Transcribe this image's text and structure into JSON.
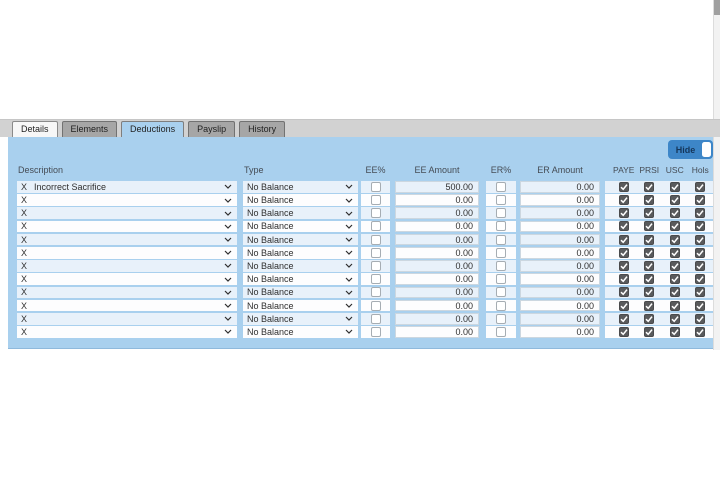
{
  "tabs": [
    {
      "label": "Details",
      "active": false
    },
    {
      "label": "Elements",
      "active": false
    },
    {
      "label": "Deductions",
      "active": true
    },
    {
      "label": "Payslip",
      "active": false
    },
    {
      "label": "History",
      "active": false
    }
  ],
  "panel": {
    "hide_toggle_label": "Hide"
  },
  "table": {
    "remove_marker": "X",
    "headers": {
      "description": "Description",
      "type": "Type",
      "ee_pct": "EE%",
      "ee_amount": "EE Amount",
      "er_pct": "ER%",
      "er_amount": "ER Amount",
      "flags": [
        "PAYE",
        "PRSI",
        "USC",
        "Hols"
      ]
    },
    "rows": [
      {
        "description": "Incorrect Sacrifice",
        "type": "No Balance",
        "ee_pct": false,
        "ee_amount": "500.00",
        "er_pct": false,
        "er_amount": "0.00",
        "flags": [
          true,
          true,
          true,
          true
        ]
      },
      {
        "description": "",
        "type": "No Balance",
        "ee_pct": false,
        "ee_amount": "0.00",
        "er_pct": false,
        "er_amount": "0.00",
        "flags": [
          true,
          true,
          true,
          true
        ]
      },
      {
        "description": "",
        "type": "No Balance",
        "ee_pct": false,
        "ee_amount": "0.00",
        "er_pct": false,
        "er_amount": "0.00",
        "flags": [
          true,
          true,
          true,
          true
        ]
      },
      {
        "description": "",
        "type": "No Balance",
        "ee_pct": false,
        "ee_amount": "0.00",
        "er_pct": false,
        "er_amount": "0.00",
        "flags": [
          true,
          true,
          true,
          true
        ]
      },
      {
        "description": "",
        "type": "No Balance",
        "ee_pct": false,
        "ee_amount": "0.00",
        "er_pct": false,
        "er_amount": "0.00",
        "flags": [
          true,
          true,
          true,
          true
        ]
      },
      {
        "description": "",
        "type": "No Balance",
        "ee_pct": false,
        "ee_amount": "0.00",
        "er_pct": false,
        "er_amount": "0.00",
        "flags": [
          true,
          true,
          true,
          true
        ]
      },
      {
        "description": "",
        "type": "No Balance",
        "ee_pct": false,
        "ee_amount": "0.00",
        "er_pct": false,
        "er_amount": "0.00",
        "flags": [
          true,
          true,
          true,
          true
        ]
      },
      {
        "description": "",
        "type": "No Balance",
        "ee_pct": false,
        "ee_amount": "0.00",
        "er_pct": false,
        "er_amount": "0.00",
        "flags": [
          true,
          true,
          true,
          true
        ]
      },
      {
        "description": "",
        "type": "No Balance",
        "ee_pct": false,
        "ee_amount": "0.00",
        "er_pct": false,
        "er_amount": "0.00",
        "flags": [
          true,
          true,
          true,
          true
        ]
      },
      {
        "description": "",
        "type": "No Balance",
        "ee_pct": false,
        "ee_amount": "0.00",
        "er_pct": false,
        "er_amount": "0.00",
        "flags": [
          true,
          true,
          true,
          true
        ]
      },
      {
        "description": "",
        "type": "No Balance",
        "ee_pct": false,
        "ee_amount": "0.00",
        "er_pct": false,
        "er_amount": "0.00",
        "flags": [
          true,
          true,
          true,
          true
        ]
      },
      {
        "description": "",
        "type": "No Balance",
        "ee_pct": false,
        "ee_amount": "0.00",
        "er_pct": false,
        "er_amount": "0.00",
        "flags": [
          true,
          true,
          true,
          true
        ]
      }
    ]
  },
  "colors": {
    "panel_blue": "#a9d0ee",
    "toggle_blue": "#3d86c8",
    "row_alt": "#e8f1fa",
    "tab_gray": "#a6a6a6",
    "checkbox_checked": "#595a5c"
  }
}
